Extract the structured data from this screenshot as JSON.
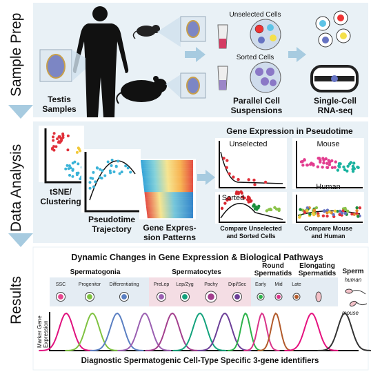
{
  "sections": {
    "sample_prep": "Sample Prep",
    "data_analysis": "Data Analysis",
    "results": "Results"
  },
  "sample_prep": {
    "testis_line1": "Testis",
    "testis_line2": "Samples",
    "unselected_cells": "Unselected Cells",
    "sorted_cells": "Sorted Cells",
    "parallel_line1": "Parallel Cell",
    "parallel_line2": "Suspensions",
    "singlecell_line1": "Single-Cell",
    "singlecell_line2": "RNA-seq"
  },
  "data_analysis": {
    "tsne_line1": "tSNE/",
    "tsne_line2": "Clustering",
    "pseudotime_line1": "Pseudotime",
    "pseudotime_line2": "Trajectory",
    "gene_line1": "Gene Expres-",
    "gene_line2": "sion Patterns",
    "gene_expr_title": "Gene Expression in Pseudotime",
    "unselected": "Unselected",
    "sorted": "Sorted",
    "mouse": "Mouse",
    "human": "Human",
    "compare1_line1": "Compare Unselected",
    "compare1_line2": "and Sorted Cells",
    "compare2_line1": "Compare Mouse",
    "compare2_line2": "and Human"
  },
  "results": {
    "title": "Dynamic Changes in Gene Expression & Biological Pathways",
    "group_spermatogonia": "Spermatogonia",
    "group_spermatocytes": "Spermatocytes",
    "group_round_line1": "Round",
    "group_round_line2": "Spermatids",
    "group_elong_line1": "Elongating",
    "group_elong_line2": "Spermatids",
    "sperm": "Sperm",
    "human": "human",
    "mouse": "mouse",
    "stages": [
      "SSC",
      "Progenitor",
      "Differentiating",
      "PreLep",
      "Lep/Zyg",
      "Pachy",
      "Dipl/Sec",
      "Early",
      "Mid",
      "Late"
    ],
    "marker_line1": "Marker Gene",
    "marker_line2": "Expression",
    "footer": "Diagnostic Spermatogenic Cell-Type Specific 3-gene identifiers"
  },
  "colors": {
    "panel_bg": "#e9f1f6",
    "arrow": "#a7cbe0",
    "curves": [
      "#e0117e",
      "#7fc241",
      "#5a7fc2",
      "#9a5fb1",
      "#a33f8e",
      "#13a27c",
      "#6c3f98",
      "#2cb24a",
      "#d9338a",
      "#b25a2a",
      "#e5117f",
      "#333333"
    ]
  }
}
